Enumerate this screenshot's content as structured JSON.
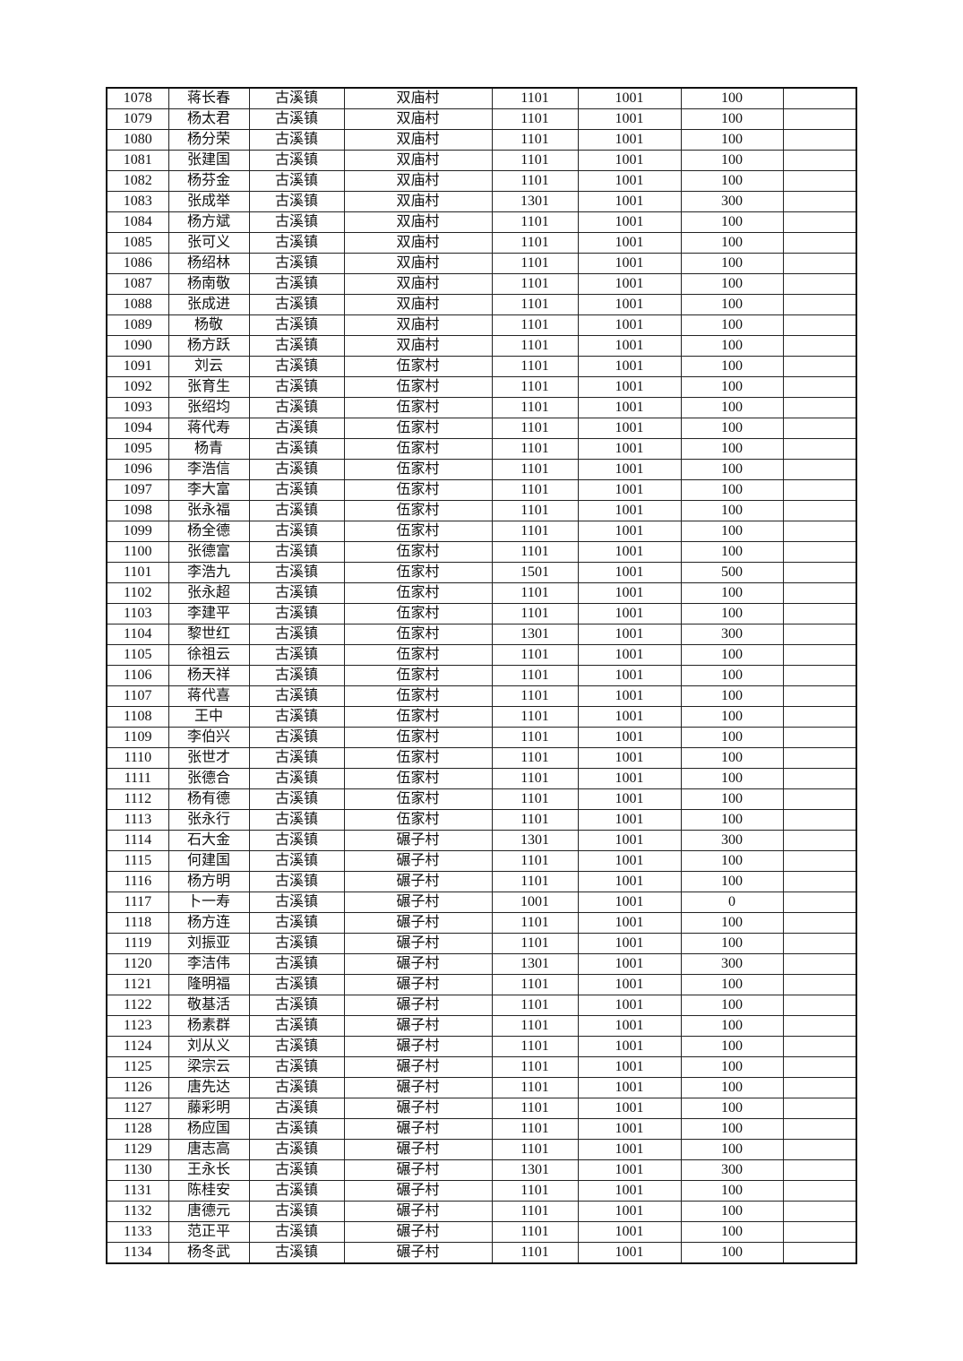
{
  "rows": [
    [
      "1078",
      "蒋长春",
      "古溪镇",
      "双庙村",
      "1101",
      "1001",
      "100",
      ""
    ],
    [
      "1079",
      "杨太君",
      "古溪镇",
      "双庙村",
      "1101",
      "1001",
      "100",
      ""
    ],
    [
      "1080",
      "杨分荣",
      "古溪镇",
      "双庙村",
      "1101",
      "1001",
      "100",
      ""
    ],
    [
      "1081",
      "张建国",
      "古溪镇",
      "双庙村",
      "1101",
      "1001",
      "100",
      ""
    ],
    [
      "1082",
      "杨芬金",
      "古溪镇",
      "双庙村",
      "1101",
      "1001",
      "100",
      ""
    ],
    [
      "1083",
      "张成举",
      "古溪镇",
      "双庙村",
      "1301",
      "1001",
      "300",
      ""
    ],
    [
      "1084",
      "杨方斌",
      "古溪镇",
      "双庙村",
      "1101",
      "1001",
      "100",
      ""
    ],
    [
      "1085",
      "张可义",
      "古溪镇",
      "双庙村",
      "1101",
      "1001",
      "100",
      ""
    ],
    [
      "1086",
      "杨绍林",
      "古溪镇",
      "双庙村",
      "1101",
      "1001",
      "100",
      ""
    ],
    [
      "1087",
      "杨南敬",
      "古溪镇",
      "双庙村",
      "1101",
      "1001",
      "100",
      ""
    ],
    [
      "1088",
      "张成进",
      "古溪镇",
      "双庙村",
      "1101",
      "1001",
      "100",
      ""
    ],
    [
      "1089",
      "杨敬",
      "古溪镇",
      "双庙村",
      "1101",
      "1001",
      "100",
      ""
    ],
    [
      "1090",
      "杨方跃",
      "古溪镇",
      "双庙村",
      "1101",
      "1001",
      "100",
      ""
    ],
    [
      "1091",
      "刘云",
      "古溪镇",
      "伍家村",
      "1101",
      "1001",
      "100",
      ""
    ],
    [
      "1092",
      "张育生",
      "古溪镇",
      "伍家村",
      "1101",
      "1001",
      "100",
      ""
    ],
    [
      "1093",
      "张绍均",
      "古溪镇",
      "伍家村",
      "1101",
      "1001",
      "100",
      ""
    ],
    [
      "1094",
      "蒋代寿",
      "古溪镇",
      "伍家村",
      "1101",
      "1001",
      "100",
      ""
    ],
    [
      "1095",
      "杨青",
      "古溪镇",
      "伍家村",
      "1101",
      "1001",
      "100",
      ""
    ],
    [
      "1096",
      "李浩信",
      "古溪镇",
      "伍家村",
      "1101",
      "1001",
      "100",
      ""
    ],
    [
      "1097",
      "李大富",
      "古溪镇",
      "伍家村",
      "1101",
      "1001",
      "100",
      ""
    ],
    [
      "1098",
      "张永福",
      "古溪镇",
      "伍家村",
      "1101",
      "1001",
      "100",
      ""
    ],
    [
      "1099",
      "杨全德",
      "古溪镇",
      "伍家村",
      "1101",
      "1001",
      "100",
      ""
    ],
    [
      "1100",
      "张德富",
      "古溪镇",
      "伍家村",
      "1101",
      "1001",
      "100",
      ""
    ],
    [
      "1101",
      "李浩九",
      "古溪镇",
      "伍家村",
      "1501",
      "1001",
      "500",
      ""
    ],
    [
      "1102",
      "张永超",
      "古溪镇",
      "伍家村",
      "1101",
      "1001",
      "100",
      ""
    ],
    [
      "1103",
      "李建平",
      "古溪镇",
      "伍家村",
      "1101",
      "1001",
      "100",
      ""
    ],
    [
      "1104",
      "黎世红",
      "古溪镇",
      "伍家村",
      "1301",
      "1001",
      "300",
      ""
    ],
    [
      "1105",
      "徐祖云",
      "古溪镇",
      "伍家村",
      "1101",
      "1001",
      "100",
      ""
    ],
    [
      "1106",
      "杨天祥",
      "古溪镇",
      "伍家村",
      "1101",
      "1001",
      "100",
      ""
    ],
    [
      "1107",
      "蒋代喜",
      "古溪镇",
      "伍家村",
      "1101",
      "1001",
      "100",
      ""
    ],
    [
      "1108",
      "王中",
      "古溪镇",
      "伍家村",
      "1101",
      "1001",
      "100",
      ""
    ],
    [
      "1109",
      "李伯兴",
      "古溪镇",
      "伍家村",
      "1101",
      "1001",
      "100",
      ""
    ],
    [
      "1110",
      "张世才",
      "古溪镇",
      "伍家村",
      "1101",
      "1001",
      "100",
      ""
    ],
    [
      "1111",
      "张德合",
      "古溪镇",
      "伍家村",
      "1101",
      "1001",
      "100",
      ""
    ],
    [
      "1112",
      "杨有德",
      "古溪镇",
      "伍家村",
      "1101",
      "1001",
      "100",
      ""
    ],
    [
      "1113",
      "张永行",
      "古溪镇",
      "伍家村",
      "1101",
      "1001",
      "100",
      ""
    ],
    [
      "1114",
      "石大金",
      "古溪镇",
      "碾子村",
      "1301",
      "1001",
      "300",
      ""
    ],
    [
      "1115",
      "何建国",
      "古溪镇",
      "碾子村",
      "1101",
      "1001",
      "100",
      ""
    ],
    [
      "1116",
      "杨方明",
      "古溪镇",
      "碾子村",
      "1101",
      "1001",
      "100",
      ""
    ],
    [
      "1117",
      "卜一寿",
      "古溪镇",
      "碾子村",
      "1001",
      "1001",
      "0",
      ""
    ],
    [
      "1118",
      "杨方连",
      "古溪镇",
      "碾子村",
      "1101",
      "1001",
      "100",
      ""
    ],
    [
      "1119",
      "刘振亚",
      "古溪镇",
      "碾子村",
      "1101",
      "1001",
      "100",
      ""
    ],
    [
      "1120",
      "李洁伟",
      "古溪镇",
      "碾子村",
      "1301",
      "1001",
      "300",
      ""
    ],
    [
      "1121",
      "隆明福",
      "古溪镇",
      "碾子村",
      "1101",
      "1001",
      "100",
      ""
    ],
    [
      "1122",
      "敬基活",
      "古溪镇",
      "碾子村",
      "1101",
      "1001",
      "100",
      ""
    ],
    [
      "1123",
      "杨素群",
      "古溪镇",
      "碾子村",
      "1101",
      "1001",
      "100",
      ""
    ],
    [
      "1124",
      "刘从义",
      "古溪镇",
      "碾子村",
      "1101",
      "1001",
      "100",
      ""
    ],
    [
      "1125",
      "梁宗云",
      "古溪镇",
      "碾子村",
      "1101",
      "1001",
      "100",
      ""
    ],
    [
      "1126",
      "唐先达",
      "古溪镇",
      "碾子村",
      "1101",
      "1001",
      "100",
      ""
    ],
    [
      "1127",
      "藤彩明",
      "古溪镇",
      "碾子村",
      "1101",
      "1001",
      "100",
      ""
    ],
    [
      "1128",
      "杨应国",
      "古溪镇",
      "碾子村",
      "1101",
      "1001",
      "100",
      ""
    ],
    [
      "1129",
      "唐志高",
      "古溪镇",
      "碾子村",
      "1101",
      "1001",
      "100",
      ""
    ],
    [
      "1130",
      "王永长",
      "古溪镇",
      "碾子村",
      "1301",
      "1001",
      "300",
      ""
    ],
    [
      "1131",
      "陈桂安",
      "古溪镇",
      "碾子村",
      "1101",
      "1001",
      "100",
      ""
    ],
    [
      "1132",
      "唐德元",
      "古溪镇",
      "碾子村",
      "1101",
      "1001",
      "100",
      ""
    ],
    [
      "1133",
      "范正平",
      "古溪镇",
      "碾子村",
      "1101",
      "1001",
      "100",
      ""
    ],
    [
      "1134",
      "杨冬武",
      "古溪镇",
      "碾子村",
      "1101",
      "1001",
      "100",
      ""
    ]
  ]
}
